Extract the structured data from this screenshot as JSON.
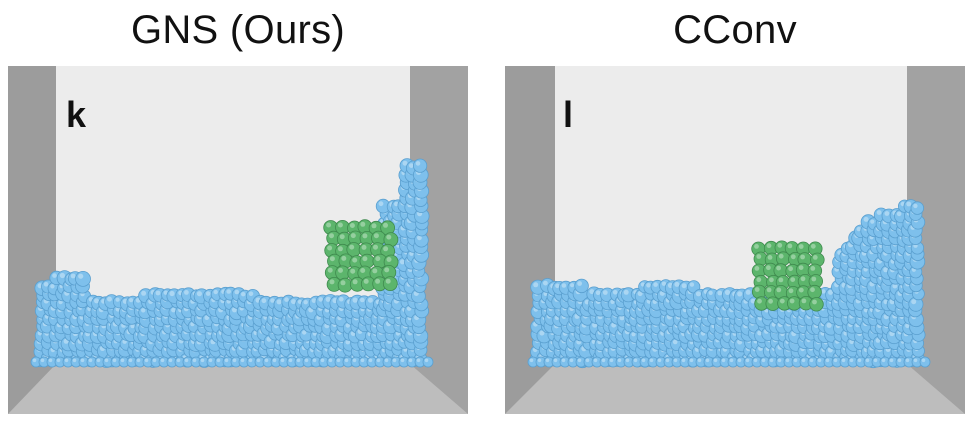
{
  "panels": [
    {
      "title": "GNS (Ours)",
      "letter": "k",
      "fluid_color": "#7ec0ec",
      "solid_color": "#5cb56c"
    },
    {
      "title": "CConv",
      "letter": "l",
      "fluid_color": "#7ec0ec",
      "solid_color": "#5cb56c"
    }
  ]
}
